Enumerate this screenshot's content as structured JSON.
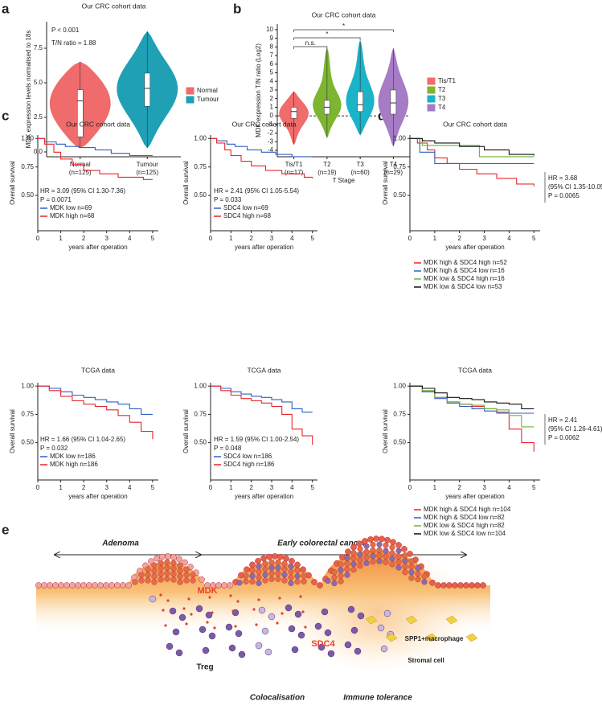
{
  "panel_labels": [
    "a",
    "b",
    "c",
    "d",
    "e"
  ],
  "chart_data": [
    {
      "type": "violin",
      "title": "Our CRC cohort data",
      "y_label": "MDK expression levels normalised to 18s",
      "categories": [
        "Normal",
        "Tumour"
      ],
      "category_notes": [
        "(n=125)",
        "(n=125)"
      ],
      "colors": [
        "#f06b6b",
        "#1fa0b5"
      ],
      "stats": [
        {
          "min": 0.3,
          "q1": 1.1,
          "median": 3.7,
          "q3": 4.5,
          "max": 6.5
        },
        {
          "min": 0.3,
          "q1": 3.3,
          "median": 4.6,
          "q3": 5.7,
          "max": 8.7
        }
      ],
      "ylim": [
        -0.35,
        9.42
      ],
      "yticks": [
        {
          "value": 0,
          "label": "0.0"
        },
        {
          "value": 2.5,
          "label": "2.5"
        },
        {
          "value": 5,
          "label": "5.0"
        },
        {
          "value": 7.5,
          "label": "7.5"
        }
      ],
      "annotations": [
        "P < 0.001",
        "T/N ratio = 1.88"
      ],
      "legend": "right"
    },
    {
      "type": "violin",
      "title": "Our CRC cohort data",
      "y_label": "MDK expression T/N ratio (Log2)",
      "x_label": "T Stage",
      "categories": [
        "Tis/T1",
        "T2",
        "T3",
        "T4"
      ],
      "category_notes": [
        "(n=17)",
        "(n=19)",
        "(n=60)",
        "(n=29)"
      ],
      "colors": [
        "#f06b6b",
        "#7cb630",
        "#1ab3c8",
        "#a67cc5"
      ],
      "stats": [
        {
          "min": -3.3,
          "q1": -0.3,
          "median": 0.5,
          "q3": 1.0,
          "max": 2.8
        },
        {
          "min": -2.5,
          "q1": 0.2,
          "median": 1.0,
          "q3": 1.8,
          "max": 7.8
        },
        {
          "min": -2.2,
          "q1": 0.5,
          "median": 1.3,
          "q3": 2.8,
          "max": 8.7
        },
        {
          "min": -3.5,
          "q1": 0.2,
          "median": 1.5,
          "q3": 3.0,
          "max": 7.8
        }
      ],
      "ylim": [
        -4.75,
        10.65
      ],
      "yticks": [
        -4,
        -3,
        -2,
        -1,
        0,
        1,
        2,
        3,
        4,
        5,
        6,
        7,
        8,
        9,
        10
      ],
      "hline": 0,
      "annotations": [
        "n.s.",
        "*",
        "*"
      ],
      "legend": "right"
    },
    {
      "type": "survival",
      "title": "Our CRC cohort data",
      "x_label": "years after operation",
      "y_label": "Overall survival",
      "xlim": [
        0,
        5.25
      ],
      "xticks": [
        0,
        1,
        2,
        3,
        4,
        5
      ],
      "ylim": [
        0.19,
        1.03
      ],
      "yticks": [
        {
          "value": 0.5,
          "label": "0.50"
        },
        {
          "value": 0.75,
          "label": "0.75"
        },
        {
          "value": 1,
          "label": "1.00"
        }
      ],
      "annotations": [
        "HR = 3.09 (95% CI 1.30-7.36)",
        "P = 0.0071"
      ],
      "series": [
        {
          "name": "MDK low n=69",
          "color": "#2f5fc4",
          "x": [
            0,
            0.3,
            0.8,
            1.2,
            1.8,
            2.5,
            3.2,
            4,
            5
          ],
          "values": [
            1,
            0.97,
            0.95,
            0.93,
            0.92,
            0.9,
            0.87,
            0.85,
            0.85
          ]
        },
        {
          "name": "MDK high n=68",
          "color": "#e8262b",
          "x": [
            0,
            0.3,
            0.7,
            1,
            1.5,
            2,
            2.7,
            3.5,
            4.6,
            5
          ],
          "values": [
            1,
            0.95,
            0.88,
            0.82,
            0.77,
            0.72,
            0.69,
            0.66,
            0.64,
            0.64
          ]
        }
      ]
    },
    {
      "type": "survival",
      "title": "Our CRC cohort data",
      "x_label": "years after operation",
      "y_label": "Overall survival",
      "xlim": [
        0,
        5.25
      ],
      "xticks": [
        0,
        1,
        2,
        3,
        4,
        5
      ],
      "ylim": [
        0.19,
        1.03
      ],
      "yticks": [
        {
          "value": 0.5,
          "label": "0.50"
        },
        {
          "value": 0.75,
          "label": "0.75"
        },
        {
          "value": 1,
          "label": "1.00"
        }
      ],
      "annotations": [
        "HR = 2.41 (95% CI 1.05-5.54)",
        "P = 0.033"
      ],
      "series": [
        {
          "name": "SDC4 low n=69",
          "color": "#2f5fc4",
          "x": [
            0,
            0.3,
            0.8,
            1.2,
            1.8,
            2.5,
            3.2,
            4,
            5
          ],
          "values": [
            1,
            0.98,
            0.95,
            0.93,
            0.9,
            0.88,
            0.86,
            0.84,
            0.84
          ]
        },
        {
          "name": "SDC4 high n=68",
          "color": "#e8262b",
          "x": [
            0,
            0.3,
            0.7,
            1,
            1.5,
            2,
            2.7,
            3.5,
            4.6,
            5
          ],
          "values": [
            1,
            0.96,
            0.9,
            0.85,
            0.8,
            0.76,
            0.72,
            0.69,
            0.66,
            0.65
          ]
        }
      ]
    },
    {
      "type": "survival",
      "title": "TCGA data",
      "x_label": "years after operation",
      "y_label": "Overall survival",
      "xlim": [
        0,
        5.25
      ],
      "xticks": [
        0,
        1,
        2,
        3,
        4,
        5
      ],
      "ylim": [
        0.17,
        1.03
      ],
      "yticks": [
        {
          "value": 0.5,
          "label": "0.50"
        },
        {
          "value": 0.75,
          "label": "0.75"
        },
        {
          "value": 1,
          "label": "1.00"
        }
      ],
      "annotations": [
        "HR = 1.66 (95% CI 1.04-2.65)",
        "P = 0.032"
      ],
      "series": [
        {
          "name": "MDK low n=186",
          "color": "#2f5fc4",
          "x": [
            0,
            0.5,
            1,
            1.5,
            2,
            2.5,
            3,
            3.5,
            4,
            4.5,
            5
          ],
          "values": [
            1,
            0.98,
            0.95,
            0.92,
            0.9,
            0.88,
            0.86,
            0.84,
            0.8,
            0.75,
            0.75
          ]
        },
        {
          "name": "MDK high n=186",
          "color": "#e8262b",
          "x": [
            0,
            0.5,
            1,
            1.5,
            2,
            2.5,
            3,
            3.5,
            4,
            4.5,
            5
          ],
          "values": [
            1,
            0.96,
            0.91,
            0.87,
            0.84,
            0.82,
            0.79,
            0.74,
            0.68,
            0.6,
            0.53
          ]
        }
      ]
    },
    {
      "type": "survival",
      "title": "TCGA data",
      "x_label": "years after operation",
      "y_label": "Overall survival",
      "xlim": [
        0,
        5.25
      ],
      "xticks": [
        0,
        1,
        2,
        3,
        4,
        5
      ],
      "ylim": [
        0.17,
        1.03
      ],
      "yticks": [
        {
          "value": 0.5,
          "label": "0.50"
        },
        {
          "value": 0.75,
          "label": "0.75"
        },
        {
          "value": 1,
          "label": "1.00"
        }
      ],
      "annotations": [
        "HR = 1.59 (95% CI 1.00-2.54)",
        "P = 0.048"
      ],
      "series": [
        {
          "name": "SDC4 low n=186",
          "color": "#2f5fc4",
          "x": [
            0,
            0.5,
            1,
            1.5,
            2,
            2.5,
            3,
            3.5,
            4,
            4.5,
            5
          ],
          "values": [
            1,
            0.98,
            0.95,
            0.93,
            0.91,
            0.9,
            0.88,
            0.86,
            0.8,
            0.77,
            0.77
          ]
        },
        {
          "name": "SDC4 high n=186",
          "color": "#e8262b",
          "x": [
            0,
            0.5,
            1,
            1.5,
            2,
            2.5,
            3,
            3.5,
            4,
            4.5,
            5
          ],
          "values": [
            1,
            0.96,
            0.92,
            0.89,
            0.87,
            0.85,
            0.82,
            0.75,
            0.62,
            0.56,
            0.48
          ]
        }
      ]
    },
    {
      "type": "survival",
      "title": "Our CRC cohort data",
      "x_label": "years after operation",
      "y_label": "Overall survival",
      "xlim": [
        0,
        5.25
      ],
      "xticks": [
        0,
        1,
        2,
        3,
        4,
        5
      ],
      "ylim": [
        0.19,
        1.03
      ],
      "yticks": [
        {
          "value": 0.5,
          "label": "0.50"
        },
        {
          "value": 0.75,
          "label": "0.75"
        },
        {
          "value": 1,
          "label": "1.00"
        }
      ],
      "annotations": [
        "HR = 3.68",
        "(95% CI 1.35-10.05)",
        "P = 0.0065"
      ],
      "series": [
        {
          "name": "MDK high & SDC4 high n=52",
          "color": "#e8262b",
          "x": [
            0,
            0.3,
            0.7,
            1,
            1.5,
            2,
            2.7,
            3.5,
            4.3,
            5
          ],
          "values": [
            1,
            0.96,
            0.9,
            0.83,
            0.78,
            0.73,
            0.69,
            0.65,
            0.6,
            0.58
          ]
        },
        {
          "name": "MDK high & SDC4 low n=16",
          "color": "#2f5fc4",
          "x": [
            0,
            0.4,
            1,
            5
          ],
          "values": [
            1,
            0.88,
            0.78,
            0.78
          ]
        },
        {
          "name": "MDK low & SDC4 high n=16",
          "color": "#6cb52d",
          "x": [
            0,
            0.5,
            2.8,
            5
          ],
          "values": [
            1,
            0.94,
            0.84,
            0.84
          ]
        },
        {
          "name": "MDK low & SDC4 low n=53",
          "color": "#111111",
          "x": [
            0,
            0.5,
            1,
            2,
            3,
            4,
            5
          ],
          "values": [
            1,
            0.98,
            0.96,
            0.93,
            0.9,
            0.86,
            0.85
          ]
        }
      ]
    },
    {
      "type": "survival",
      "title": "TCGA data",
      "x_label": "years after operation",
      "y_label": "Overall survival",
      "xlim": [
        0,
        5.25
      ],
      "xticks": [
        0,
        1,
        2,
        3,
        4,
        5
      ],
      "ylim": [
        0.17,
        1.03
      ],
      "yticks": [
        {
          "value": 0.5,
          "label": "0.50"
        },
        {
          "value": 0.75,
          "label": "0.75"
        },
        {
          "value": 1,
          "label": "1.00"
        }
      ],
      "annotations": [
        "HR = 2.41",
        "(95% CI 1.26-4.61)",
        "P = 0.0062"
      ],
      "series": [
        {
          "name": "MDK high & SDC4 high n=104",
          "color": "#e8262b",
          "x": [
            0,
            0.5,
            1,
            1.5,
            2,
            2.5,
            3,
            3.5,
            4,
            4.5,
            5
          ],
          "values": [
            1,
            0.95,
            0.9,
            0.86,
            0.84,
            0.82,
            0.8,
            0.76,
            0.62,
            0.5,
            0.42
          ]
        },
        {
          "name": "MDK high & SDC4 low n=82",
          "color": "#2f5fc4",
          "x": [
            0,
            0.5,
            1,
            1.5,
            2,
            2.5,
            3,
            3.5,
            4,
            4.5,
            5
          ],
          "values": [
            1,
            0.95,
            0.89,
            0.85,
            0.82,
            0.8,
            0.78,
            0.77,
            0.76,
            0.76,
            0.76
          ]
        },
        {
          "name": "MDK low & SDC4 high n=82",
          "color": "#6cb52d",
          "x": [
            0,
            0.5,
            1,
            1.5,
            2,
            2.5,
            3,
            3.5,
            4,
            4.5,
            5
          ],
          "values": [
            1,
            0.96,
            0.9,
            0.86,
            0.84,
            0.83,
            0.8,
            0.79,
            0.74,
            0.64,
            0.64
          ]
        },
        {
          "name": "MDK low & SDC4 low n=104",
          "color": "#111111",
          "x": [
            0,
            0.5,
            1,
            1.5,
            2,
            2.5,
            3,
            3.5,
            4,
            4.5,
            5
          ],
          "values": [
            1,
            0.98,
            0.94,
            0.9,
            0.89,
            0.88,
            0.86,
            0.85,
            0.84,
            0.8,
            0.8
          ]
        }
      ]
    }
  ],
  "illustration": {
    "phases": [
      "Adenoma",
      "Early colorectal cancer"
    ],
    "labels": [
      "MDK",
      "SDC4",
      "Treg",
      "SPP1+macrophage",
      "Stromal cell"
    ],
    "stages": [
      "Colocalisation",
      "Immune tolerance"
    ]
  }
}
